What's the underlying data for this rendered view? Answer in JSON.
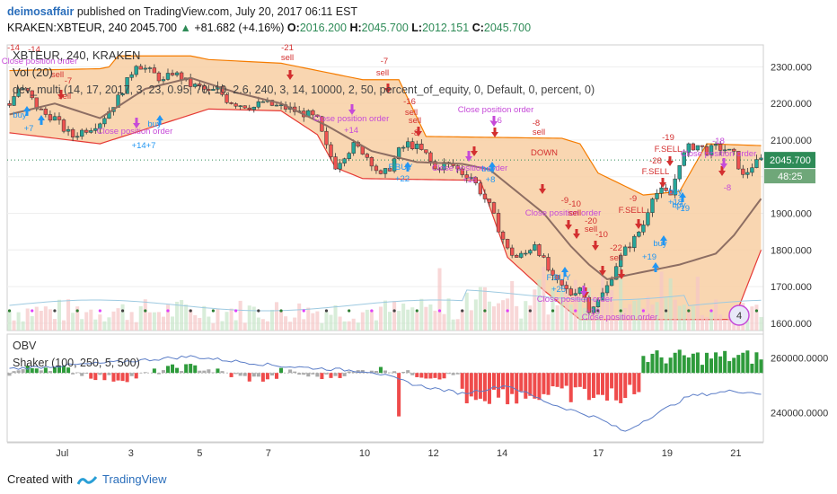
{
  "header": {
    "author": "deimosaffair",
    "published": "published on TradingView.com, July 20, 2017 06:11 EST",
    "symbol": "KRAKEN:XBTEUR, 240",
    "last": "2045.700",
    "change": "+81.682 (+4.16%)",
    "open_label": "O:",
    "open": "2016.200",
    "high_label": "H:",
    "high": "2045.700",
    "low_label": "L:",
    "low": "2012.151",
    "close_label": "C:",
    "close": "2045.700"
  },
  "main_pane": {
    "title": "XBTEUR, 240, KRAKEN",
    "vol_label": "Vol (20)",
    "strategy_label": "dev_multi (14, 17, 2017, 3, 23, 0.95, 70, 10, 2.6, 240, 3, 14, 10000, 2, 50, percent_of_equity, 0, Default, 0, percent, 0)",
    "price_tag": "2045.700",
    "time_tag": "48:25",
    "y_ticks": [
      "2300.000",
      "2200.000",
      "2100.000",
      "2000.000",
      "1900.000",
      "1800.000",
      "1700.000",
      "1600.000"
    ]
  },
  "lower_pane": {
    "obv_label": "OBV",
    "shaker_label": "Shaker (100, 250, 5, 500)",
    "y_ticks": [
      "260000.0000",
      "240000.0000"
    ]
  },
  "x_ticks": [
    "Jul",
    "3",
    "5",
    "7",
    "10",
    "12",
    "14",
    "17",
    "19",
    "21"
  ],
  "footer": {
    "created": "Created with",
    "brand": "TradingView"
  },
  "annotations": [
    {
      "text": "-14",
      "kind": "num"
    },
    {
      "text": "-14",
      "kind": "num"
    },
    {
      "text": "sell",
      "kind": "sell"
    },
    {
      "text": "Close position order",
      "kind": "close"
    },
    {
      "text": "-7",
      "kind": "num"
    },
    {
      "text": "sell",
      "kind": "sell"
    },
    {
      "text": "buy",
      "kind": "buy"
    },
    {
      "text": "+7",
      "kind": "bnum"
    },
    {
      "text": "buy",
      "kind": "buy"
    },
    {
      "text": "Close position order",
      "kind": "close"
    },
    {
      "text": "+14+7",
      "kind": "bnum"
    },
    {
      "text": "-21",
      "kind": "num"
    },
    {
      "text": "sell",
      "kind": "sell"
    },
    {
      "text": "-7",
      "kind": "num"
    },
    {
      "text": "sell",
      "kind": "sell"
    },
    {
      "text": "Close position order",
      "kind": "close"
    },
    {
      "text": "+14",
      "kind": "close"
    },
    {
      "text": "-16",
      "kind": "num"
    },
    {
      "text": "sell",
      "kind": "sell"
    },
    {
      "text": "-8",
      "kind": "num"
    },
    {
      "text": "sell",
      "kind": "sell"
    },
    {
      "text": "F.BUY",
      "kind": "buy"
    },
    {
      "text": "+22",
      "kind": "bnum"
    },
    {
      "text": "Close position order",
      "kind": "close"
    },
    {
      "text": "-16",
      "kind": "close"
    },
    {
      "text": "Close position order",
      "kind": "close"
    },
    {
      "text": "+16",
      "kind": "close"
    },
    {
      "text": "buy",
      "kind": "buy"
    },
    {
      "text": "+8",
      "kind": "bnum"
    },
    {
      "text": "-8",
      "kind": "num"
    },
    {
      "text": "sell",
      "kind": "sell"
    },
    {
      "text": "DOWN",
      "kind": "sell"
    },
    {
      "text": "-9",
      "kind": "num"
    },
    {
      "text": "Close position order",
      "kind": "close"
    },
    {
      "text": "-10",
      "kind": "num"
    },
    {
      "text": "sell",
      "kind": "sell"
    },
    {
      "text": "-20",
      "kind": "num"
    },
    {
      "text": "sell",
      "kind": "sell"
    },
    {
      "text": "-10",
      "kind": "num"
    },
    {
      "text": "-22",
      "kind": "num"
    },
    {
      "text": "sell",
      "kind": "sell"
    },
    {
      "text": "F.BUY",
      "kind": "buy"
    },
    {
      "text": "+25",
      "kind": "bnum"
    },
    {
      "text": "Close position order",
      "kind": "close"
    },
    {
      "text": "+10",
      "kind": "close"
    },
    {
      "text": "Close position order",
      "kind": "close"
    },
    {
      "text": "-9",
      "kind": "num"
    },
    {
      "text": "F.SELL",
      "kind": "sell"
    },
    {
      "text": "buy",
      "kind": "buy"
    },
    {
      "text": "+19",
      "kind": "bnum"
    },
    {
      "text": "buy",
      "kind": "buy"
    },
    {
      "text": "+19",
      "kind": "bnum"
    },
    {
      "text": "-19",
      "kind": "num"
    },
    {
      "text": "F.SELL",
      "kind": "sell"
    },
    {
      "text": "-28",
      "kind": "num"
    },
    {
      "text": "F.SELL",
      "kind": "sell"
    },
    {
      "text": "buy",
      "kind": "buy"
    },
    {
      "text": "+18",
      "kind": "bnum"
    },
    {
      "text": "-18",
      "kind": "close"
    },
    {
      "text": "Close position order",
      "kind": "close"
    },
    {
      "text": "-8",
      "kind": "close"
    }
  ],
  "chart_data": [
    {
      "type": "candlestick",
      "title": "XBTEUR, 240, KRAKEN",
      "ylim": [
        1580,
        2360
      ],
      "x_labels": [
        "Jul",
        "3",
        "5",
        "7",
        "10",
        "12",
        "14",
        "17",
        "19",
        "21"
      ],
      "close_anchors": [
        [
          0,
          2200
        ],
        [
          2,
          2240
        ],
        [
          4,
          2230
        ],
        [
          6,
          2190
        ],
        [
          8,
          2170
        ],
        [
          10,
          2160
        ],
        [
          12,
          2130
        ],
        [
          14,
          2110
        ],
        [
          16,
          2125
        ],
        [
          18,
          2135
        ],
        [
          20,
          2150
        ],
        [
          22,
          2180
        ],
        [
          24,
          2215
        ],
        [
          26,
          2260
        ],
        [
          28,
          2310
        ],
        [
          30,
          2295
        ],
        [
          32,
          2280
        ],
        [
          34,
          2260
        ],
        [
          36,
          2285
        ],
        [
          38,
          2270
        ],
        [
          40,
          2250
        ],
        [
          42,
          2245
        ],
        [
          44,
          2230
        ],
        [
          46,
          2240
        ],
        [
          48,
          2210
        ],
        [
          50,
          2200
        ],
        [
          52,
          2195
        ],
        [
          54,
          2190
        ],
        [
          56,
          2205
        ],
        [
          58,
          2195
        ],
        [
          60,
          2190
        ],
        [
          62,
          2185
        ],
        [
          64,
          2175
        ],
        [
          66,
          2170
        ],
        [
          68,
          2155
        ],
        [
          70,
          2080
        ],
        [
          72,
          2030
        ],
        [
          74,
          2060
        ],
        [
          76,
          2085
        ],
        [
          78,
          2070
        ],
        [
          80,
          2040
        ],
        [
          82,
          2000
        ],
        [
          84,
          2025
        ],
        [
          86,
          2070
        ],
        [
          88,
          2090
        ],
        [
          90,
          2080
        ],
        [
          92,
          2060
        ],
        [
          94,
          2020
        ],
        [
          96,
          2035
        ],
        [
          98,
          2030
        ],
        [
          100,
          2010
        ],
        [
          102,
          2000
        ],
        [
          104,
          1960
        ],
        [
          106,
          1920
        ],
        [
          108,
          1860
        ],
        [
          110,
          1800
        ],
        [
          112,
          1780
        ],
        [
          114,
          1790
        ],
        [
          116,
          1820
        ],
        [
          118,
          1770
        ],
        [
          120,
          1720
        ],
        [
          122,
          1700
        ],
        [
          124,
          1680
        ],
        [
          126,
          1700
        ],
        [
          128,
          1640
        ],
        [
          130,
          1660
        ],
        [
          132,
          1700
        ],
        [
          134,
          1760
        ],
        [
          136,
          1800
        ],
        [
          138,
          1830
        ],
        [
          140,
          1870
        ],
        [
          142,
          1950
        ],
        [
          144,
          1960
        ],
        [
          146,
          1950
        ],
        [
          148,
          2040
        ],
        [
          150,
          2080
        ],
        [
          152,
          2085
        ],
        [
          154,
          2070
        ],
        [
          156,
          2080
        ],
        [
          158,
          2075
        ],
        [
          160,
          2060
        ],
        [
          162,
          2000
        ],
        [
          164,
          2030
        ],
        [
          166,
          2045.7
        ]
      ],
      "sma_anchors": [
        [
          0,
          2170
        ],
        [
          10,
          2200
        ],
        [
          20,
          2160
        ],
        [
          30,
          2240
        ],
        [
          40,
          2270
        ],
        [
          50,
          2230
        ],
        [
          60,
          2200
        ],
        [
          70,
          2140
        ],
        [
          80,
          2070
        ],
        [
          90,
          2040
        ],
        [
          100,
          2035
        ],
        [
          106,
          2020
        ],
        [
          112,
          1960
        ],
        [
          118,
          1900
        ],
        [
          124,
          1810
        ],
        [
          128,
          1760
        ],
        [
          132,
          1720
        ],
        [
          140,
          1740
        ],
        [
          148,
          1760
        ],
        [
          156,
          1790
        ],
        [
          160,
          1840
        ],
        [
          166,
          1940
        ]
      ],
      "upper_anchors": [
        [
          0,
          2290
        ],
        [
          20,
          2295
        ],
        [
          22,
          2300
        ],
        [
          24,
          2330
        ],
        [
          40,
          2330
        ],
        [
          44,
          2320
        ],
        [
          60,
          2310
        ],
        [
          64,
          2300
        ],
        [
          68,
          2290
        ],
        [
          78,
          2265
        ],
        [
          86,
          2265
        ],
        [
          92,
          2110
        ],
        [
          122,
          2105
        ],
        [
          126,
          2090
        ],
        [
          130,
          2010
        ],
        [
          140,
          1950
        ],
        [
          148,
          1960
        ],
        [
          154,
          2090
        ],
        [
          166,
          2085
        ]
      ],
      "lower_anchors": [
        [
          0,
          2120
        ],
        [
          20,
          2090
        ],
        [
          44,
          2185
        ],
        [
          60,
          2180
        ],
        [
          68,
          2115
        ],
        [
          72,
          2025
        ],
        [
          78,
          1995
        ],
        [
          104,
          1990
        ],
        [
          110,
          1780
        ],
        [
          118,
          1690
        ],
        [
          126,
          1610
        ],
        [
          160,
          1610
        ],
        [
          166,
          1800
        ]
      ],
      "obv_ylim": [
        230000,
        268000
      ],
      "obv_ticks": [
        260000,
        240000
      ]
    }
  ],
  "colors": {
    "up": "#26a69a",
    "down": "#ef5350",
    "channel_fill": "#f8cfa3",
    "channel_line": "#f57c00",
    "sma": "#8d6e63",
    "lower_band": "#e53935",
    "buy": "#2196f3",
    "sell": "#d32f2f",
    "close": "#c64ad8",
    "obv": "#5b7dc7"
  }
}
